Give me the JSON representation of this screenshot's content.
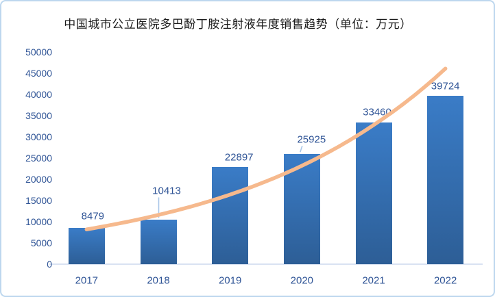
{
  "chart_data": {
    "type": "bar",
    "title": "中国城市公立医院多巴酚丁胺注射液年度销售趋势（单位：万元）",
    "categories": [
      "2017",
      "2018",
      "2019",
      "2020",
      "2021",
      "2022"
    ],
    "values": [
      8479,
      10413,
      22897,
      25925,
      33460,
      39724
    ],
    "trend": {
      "type": "exponential",
      "values_estimated": [
        8200,
        11600,
        16400,
        23200,
        32800,
        46100
      ]
    },
    "xlabel": "",
    "ylabel": "",
    "ylim": [
      0,
      50000
    ],
    "ytick_step": 5000,
    "legend": "none",
    "grid": false,
    "colors": {
      "bar_top": "#3A7CC7",
      "bar_bottom": "#2D5E96",
      "trend_line": "#F6B98D",
      "label_text": "#2F5496",
      "axis_line": "#D9E2F2",
      "leader_line": "#A9C6E8",
      "frame_border": "#BDD7EE",
      "title_text": "#1A1A1A",
      "background": "#FFFFFF"
    }
  }
}
